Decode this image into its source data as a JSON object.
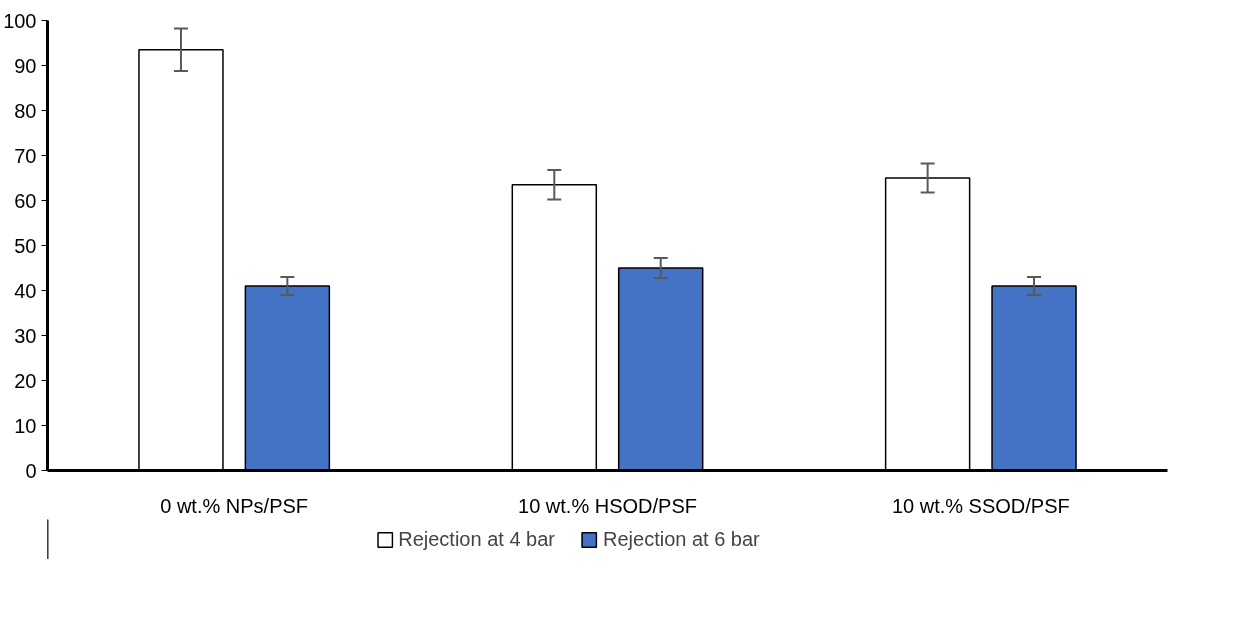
{
  "chart_data": {
    "type": "bar",
    "categories": [
      "0 wt.% NPs/PSF",
      "10 wt.% HSOD/PSF",
      "10 wt.% SSOD/PSF"
    ],
    "series": [
      {
        "name": "Rejection at 4 bar",
        "color": "#ffffff",
        "values": [
          93.5,
          63.5,
          65
        ],
        "errors": [
          4.7,
          3.3,
          3.2
        ]
      },
      {
        "name": "Rejection at 6 bar",
        "color": "#4472c4",
        "values": [
          41,
          45,
          41
        ],
        "errors": [
          2.0,
          2.2,
          2.0
        ]
      }
    ],
    "ylim": [
      0,
      100
    ],
    "yticks": [
      0,
      10,
      20,
      30,
      40,
      50,
      60,
      70,
      80,
      90,
      100
    ],
    "grid": false,
    "legend": "bottom"
  }
}
